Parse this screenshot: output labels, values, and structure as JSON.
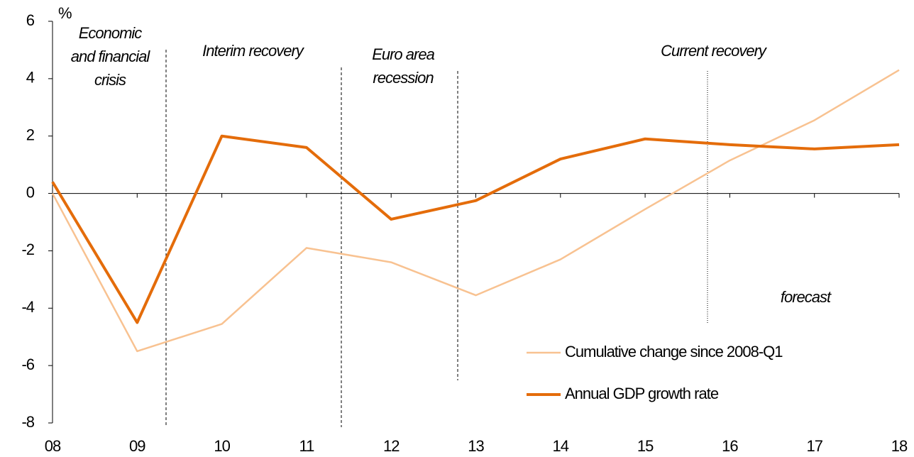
{
  "chart_data": {
    "type": "line",
    "y_label": "%",
    "categories": [
      "08",
      "09",
      "10",
      "11",
      "12",
      "13",
      "14",
      "15",
      "16",
      "17",
      "18"
    ],
    "series": [
      {
        "name": "Cumulative change since 2008-Q1",
        "color": "#f8c291",
        "values": [
          0.0,
          -5.5,
          -4.55,
          -1.9,
          -2.4,
          -3.55,
          -2.3,
          -0.55,
          1.15,
          2.55,
          4.3
        ]
      },
      {
        "name": "Annual GDP growth rate",
        "color": "#e46c0a",
        "values": [
          0.4,
          -4.5,
          2.0,
          1.6,
          -0.9,
          -0.25,
          1.2,
          1.9,
          1.7,
          1.55,
          1.7
        ]
      }
    ],
    "ylim": [
      -8,
      6
    ],
    "yticks": [
      -8,
      -6,
      -4,
      -2,
      0,
      2,
      4,
      6
    ],
    "annotations": [
      [
        "Economic",
        "and financial",
        "crisis"
      ],
      [
        "Interim recovery"
      ],
      [
        "Euro area",
        "recession"
      ],
      [
        "Current recovery"
      ],
      [
        "forecast"
      ]
    ],
    "legend": "lower right"
  }
}
